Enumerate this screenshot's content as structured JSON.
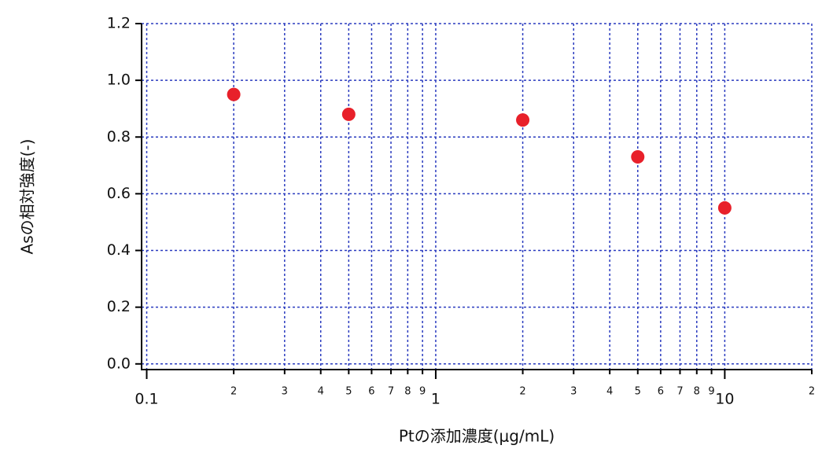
{
  "chart_data": {
    "type": "scatter",
    "xlabel": "Ptの添加濃度(μg/mL)",
    "ylabel": "Asの相対強度(-)",
    "x": [
      0.2,
      0.5,
      2,
      5,
      10
    ],
    "values": [
      0.95,
      0.88,
      0.86,
      0.73,
      0.55
    ],
    "color": "#e8202a",
    "xscale": "log",
    "xlim": [
      0.096,
      20
    ],
    "ylim": [
      -0.02,
      1.2
    ],
    "xticks": [
      0.1,
      {
        "value": 0.2,
        "label": "2"
      },
      {
        "value": 0.3,
        "label": "3"
      },
      {
        "value": 0.4,
        "label": "4"
      },
      {
        "value": 0.5,
        "label": "5"
      },
      {
        "value": 0.6,
        "label": "6"
      },
      {
        "value": 0.7,
        "label": "7"
      },
      {
        "value": 0.8,
        "label": "8"
      },
      {
        "value": 0.9,
        "label": "9"
      },
      1,
      {
        "value": 2,
        "label": "2"
      },
      {
        "value": 3,
        "label": "3"
      },
      {
        "value": 4,
        "label": "4"
      },
      {
        "value": 5,
        "label": "5"
      },
      {
        "value": 6,
        "label": "6"
      },
      {
        "value": 7,
        "label": "7"
      },
      {
        "value": 8,
        "label": "8"
      },
      {
        "value": 9,
        "label": "9"
      },
      10,
      {
        "value": 20,
        "label": "2"
      }
    ],
    "yticks": [
      {
        "value": 0,
        "label": "0.0"
      },
      0.2,
      0.4,
      0.6,
      0.8,
      {
        "value": 1,
        "label": "1.0"
      },
      1.2
    ],
    "grid": true,
    "grid_color": "#2a3bbf"
  }
}
